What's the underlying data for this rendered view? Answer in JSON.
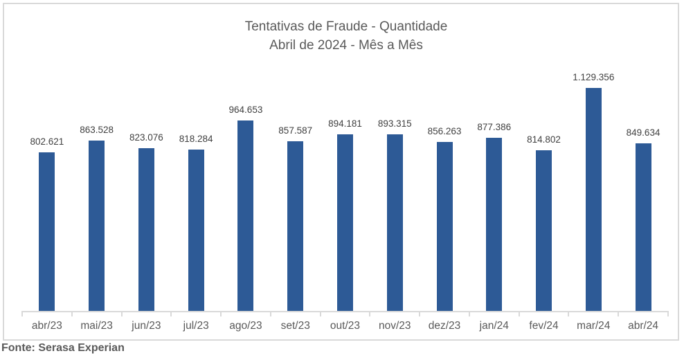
{
  "title": {
    "line1": "Tentativas de Fraude - Quantidade",
    "line2": "Abril de 2024 - Mês a Mês"
  },
  "footer": {
    "source": "Fonte: Serasa Experian"
  },
  "colors": {
    "bar": "#2d5a96",
    "axis": "#d9d9d9",
    "title_text": "#595959",
    "data_label": "#404040",
    "x_label": "#595959",
    "footer_text": "#595959"
  },
  "chart_data": {
    "type": "bar",
    "title": "Tentativas de Fraude - Quantidade | Abril de 2024 - Mês a Mês",
    "categories": [
      "abr/23",
      "mai/23",
      "jun/23",
      "jul/23",
      "ago/23",
      "set/23",
      "out/23",
      "nov/23",
      "dez/23",
      "jan/24",
      "fev/24",
      "mar/24",
      "abr/24"
    ],
    "values": [
      802621,
      863528,
      823076,
      818284,
      964653,
      857587,
      894181,
      893315,
      856263,
      877386,
      814802,
      1129356,
      849634
    ],
    "data_labels": [
      "802.621",
      "863.528",
      "823.076",
      "818.284",
      "964.653",
      "857.587",
      "894.181",
      "893.315",
      "856.263",
      "877.386",
      "814.802",
      "1.129.356",
      "849.634"
    ],
    "xlabel": "",
    "ylabel": "",
    "ylim": [
      0,
      1260000
    ],
    "grid": false,
    "legend": false,
    "data_labels_visible": true,
    "source": "Fonte: Serasa Experian"
  }
}
